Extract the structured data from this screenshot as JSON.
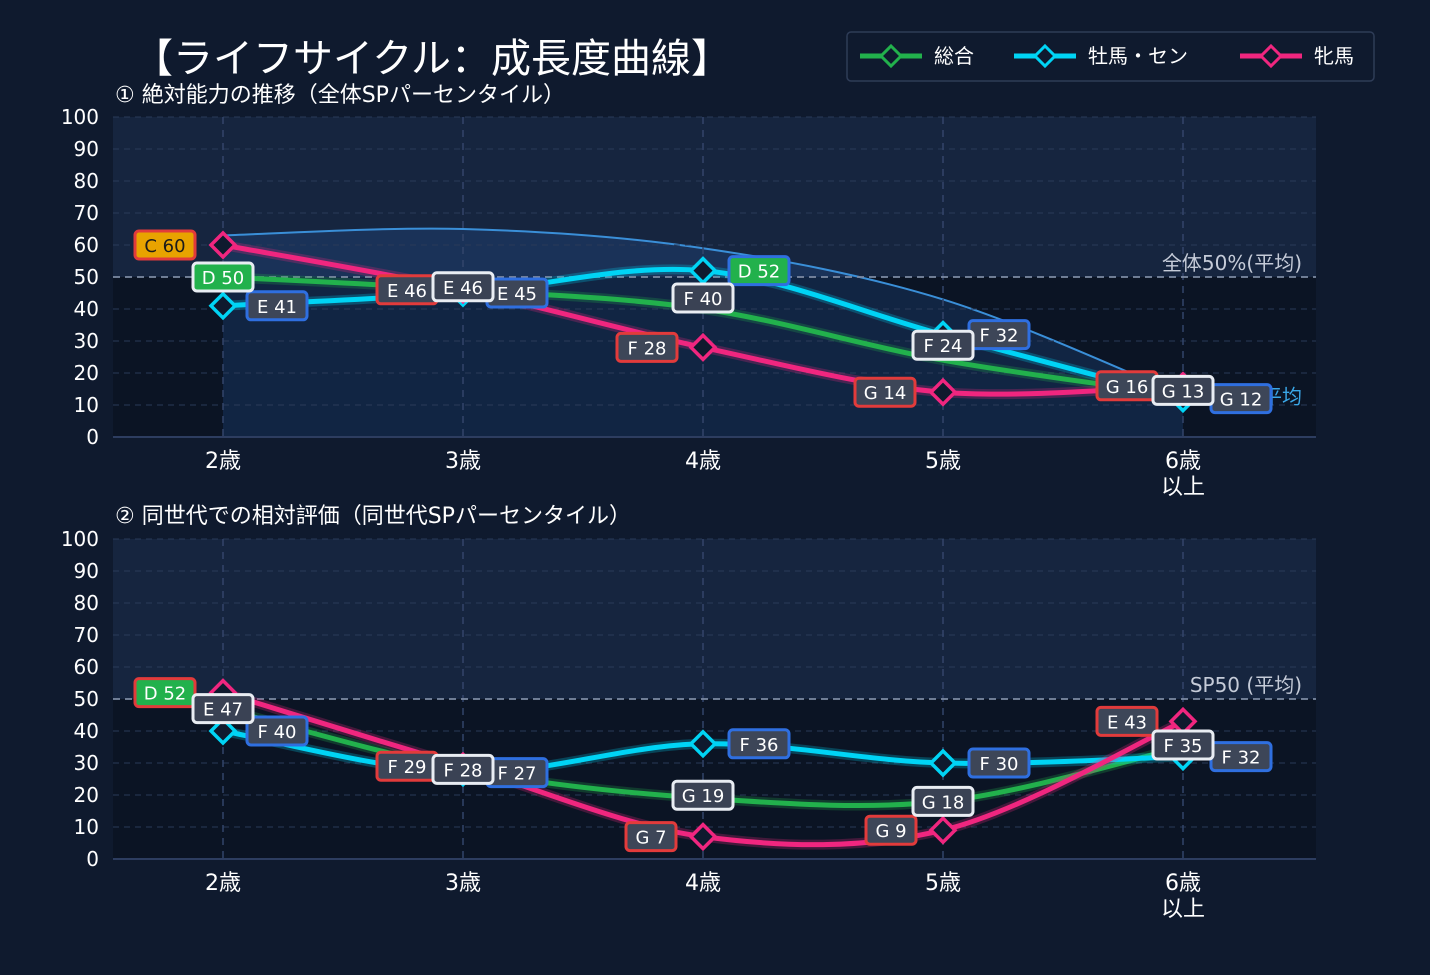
{
  "title": "【ライフサイクル：成長度曲線】",
  "colors": {
    "sogo": "#22b14c",
    "bokuba": "#00d4f5",
    "hinba": "#f0267f"
  },
  "legend": [
    {
      "key": "sogo",
      "label": "総合"
    },
    {
      "key": "bokuba",
      "label": "牡馬・セン"
    },
    {
      "key": "hinba",
      "label": "牝馬"
    }
  ],
  "chart_data": [
    {
      "type": "line",
      "subtitle": "① 絶対能力の推移（全体SPパーセンタイル）",
      "categories": [
        "2歳",
        "3歳",
        "4歳",
        "5歳",
        "6歳\n以上"
      ],
      "ylim": [
        0,
        100
      ],
      "yticks": [
        0,
        10,
        20,
        30,
        40,
        50,
        60,
        70,
        80,
        90,
        100
      ],
      "reference_line": {
        "value": 50,
        "label": "全体50%(平均)"
      },
      "average_curve": {
        "label": "全体平均",
        "values": [
          63,
          65,
          59,
          43,
          13
        ]
      },
      "series": [
        {
          "key": "sogo",
          "name": "総合",
          "values": [
            50,
            46,
            40,
            24,
            13
          ],
          "labels": [
            "D 50",
            "E 46",
            "F 40",
            "F 24",
            "G 13"
          ]
        },
        {
          "key": "bokuba",
          "name": "牡馬・セン",
          "values": [
            41,
            45,
            52,
            32,
            12
          ],
          "labels": [
            "E 41",
            "E 45",
            "D 52",
            "F 32",
            "G 12"
          ]
        },
        {
          "key": "hinba",
          "name": "牝馬",
          "values": [
            60,
            46,
            28,
            14,
            16
          ],
          "labels": [
            "C 60",
            "E 46",
            "F 28",
            "G 14",
            "G 16"
          ]
        }
      ]
    },
    {
      "type": "line",
      "subtitle": "② 同世代での相対評価（同世代SPパーセンタイル）",
      "categories": [
        "2歳",
        "3歳",
        "4歳",
        "5歳",
        "6歳\n以上"
      ],
      "ylim": [
        0,
        100
      ],
      "yticks": [
        0,
        10,
        20,
        30,
        40,
        50,
        60,
        70,
        80,
        90,
        100
      ],
      "reference_line": {
        "value": 50,
        "label": "SP50 (平均)"
      },
      "series": [
        {
          "key": "sogo",
          "name": "総合",
          "values": [
            47,
            28,
            19,
            18,
            35
          ],
          "labels": [
            "E 47",
            "F 28",
            "G 19",
            "G 18",
            "F 35"
          ]
        },
        {
          "key": "bokuba",
          "name": "牡馬・セン",
          "values": [
            40,
            27,
            36,
            30,
            32
          ],
          "labels": [
            "F 40",
            "F 27",
            "F 36",
            "F 30",
            "F 32"
          ]
        },
        {
          "key": "hinba",
          "name": "牝馬",
          "values": [
            52,
            29,
            7,
            9,
            43
          ],
          "labels": [
            "D 52",
            "F 29",
            "G 7",
            "G 9",
            "E 43"
          ]
        }
      ]
    }
  ]
}
